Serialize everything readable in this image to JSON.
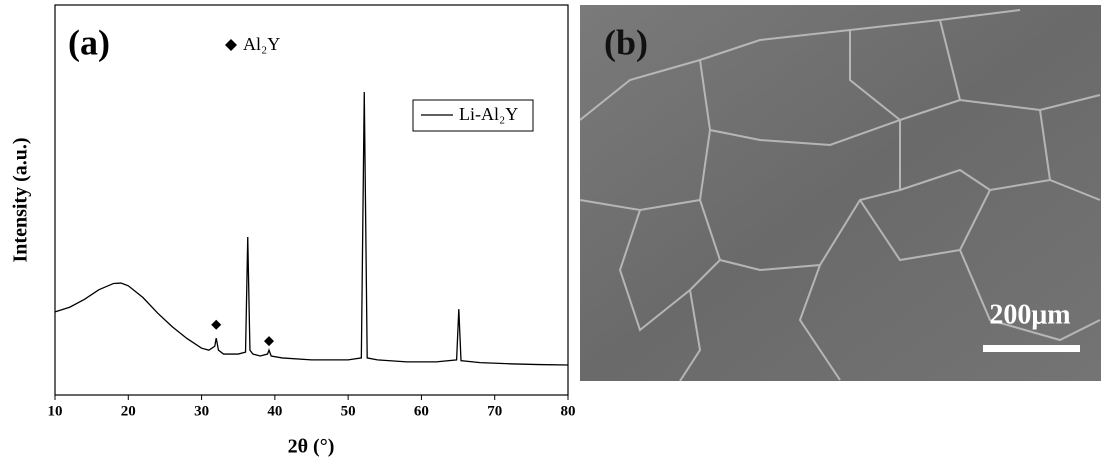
{
  "chart_data": {
    "type": "line",
    "title": "(a)",
    "xlabel": "2θ (°)",
    "ylabel": "Intensity (a.u.)",
    "annotation": "Al₂Y",
    "x": [
      10,
      12,
      14,
      16,
      18,
      19,
      20,
      22,
      24,
      26,
      28,
      30,
      31,
      31.8,
      32,
      32.3,
      33,
      35,
      36,
      36.3,
      36.6,
      37,
      38,
      39,
      39.2,
      39.5,
      41,
      45,
      50,
      51.8,
      52.2,
      52.6,
      54,
      58,
      62,
      64.8,
      65.1,
      65.4,
      68,
      72,
      76,
      80
    ],
    "series": [
      {
        "name": "Li-Al₂Y",
        "color": "#000000",
        "values": [
          21.3,
          22.5,
          24.5,
          27,
          28.6,
          28.7,
          28,
          25,
          21,
          17.5,
          14.5,
          12,
          11.5,
          12.5,
          14.6,
          11.5,
          10.5,
          10.5,
          11,
          40.5,
          11.5,
          10.5,
          10,
          10.5,
          11.5,
          10,
          9.5,
          9,
          9,
          9.5,
          77.7,
          9.5,
          9,
          8.5,
          8.5,
          9,
          22,
          8.8,
          8.3,
          8,
          7.8,
          7.7
        ]
      }
    ],
    "markers": {
      "x": [
        32,
        39.2
      ],
      "y": [
        18,
        13.8
      ]
    },
    "xlim": [
      10,
      80
    ],
    "xticks": [
      10,
      20,
      30,
      40,
      50,
      60,
      70,
      80
    ],
    "ylim": [
      0,
      100
    ],
    "legend": "upper right"
  },
  "image_panel": {
    "label": "(b)",
    "scale_bar": "200μm"
  }
}
